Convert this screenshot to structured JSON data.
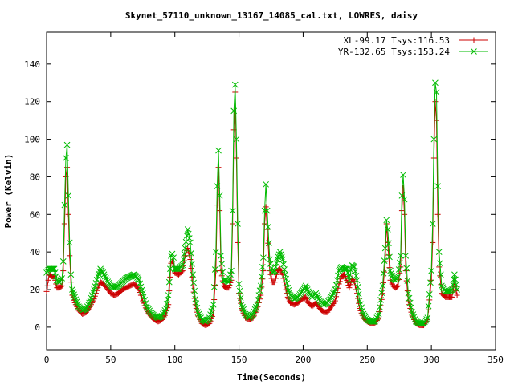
{
  "chart_data": {
    "type": "line",
    "title": "Skynet_57110_unknown_13167_14085_cal.txt, LOWRES, daisy",
    "xlabel": "Time(Seconds)",
    "ylabel": "Power (Kelvin)",
    "xlim": [
      0,
      350
    ],
    "ylim": [
      -12,
      157
    ],
    "xticks": [
      0,
      50,
      100,
      150,
      200,
      250,
      300,
      350
    ],
    "yticks": [
      0,
      20,
      40,
      60,
      80,
      100,
      120,
      140
    ],
    "legend_position": "top-right",
    "series": [
      {
        "name": "XL-99.17 Tsys:116.53",
        "color": "#cc0000",
        "marker": "plus",
        "points": [
          [
            0,
            19
          ],
          [
            2,
            28
          ],
          [
            4,
            27
          ],
          [
            6,
            27
          ],
          [
            8,
            21
          ],
          [
            10,
            21
          ],
          [
            12,
            22
          ],
          [
            13,
            30
          ],
          [
            14,
            55
          ],
          [
            15,
            80
          ],
          [
            16,
            85
          ],
          [
            17,
            60
          ],
          [
            18,
            38
          ],
          [
            19,
            24
          ],
          [
            20,
            17
          ],
          [
            22,
            13
          ],
          [
            25,
            9
          ],
          [
            28,
            7
          ],
          [
            31,
            8
          ],
          [
            34,
            11
          ],
          [
            37,
            15
          ],
          [
            40,
            21
          ],
          [
            42,
            24
          ],
          [
            44,
            23
          ],
          [
            47,
            21
          ],
          [
            50,
            18
          ],
          [
            53,
            17
          ],
          [
            56,
            18
          ],
          [
            59,
            20
          ],
          [
            62,
            21
          ],
          [
            65,
            22
          ],
          [
            68,
            23
          ],
          [
            70,
            22
          ],
          [
            72,
            20
          ],
          [
            75,
            14
          ],
          [
            78,
            9
          ],
          [
            81,
            6
          ],
          [
            84,
            4
          ],
          [
            87,
            3
          ],
          [
            90,
            4
          ],
          [
            93,
            7
          ],
          [
            95,
            12
          ],
          [
            97,
            34
          ],
          [
            98,
            35
          ],
          [
            99,
            33
          ],
          [
            100,
            29
          ],
          [
            103,
            28
          ],
          [
            106,
            30
          ],
          [
            108,
            38
          ],
          [
            110,
            42
          ],
          [
            112,
            36
          ],
          [
            114,
            22
          ],
          [
            116,
            12
          ],
          [
            118,
            6
          ],
          [
            121,
            2
          ],
          [
            124,
            1
          ],
          [
            127,
            2
          ],
          [
            130,
            7
          ],
          [
            132,
            30
          ],
          [
            133,
            65
          ],
          [
            134,
            85
          ],
          [
            135,
            62
          ],
          [
            136,
            30
          ],
          [
            138,
            22
          ],
          [
            140,
            21
          ],
          [
            142,
            21
          ],
          [
            144,
            25
          ],
          [
            145,
            55
          ],
          [
            146,
            105
          ],
          [
            147,
            125
          ],
          [
            148,
            90
          ],
          [
            149,
            45
          ],
          [
            150,
            18
          ],
          [
            152,
            10
          ],
          [
            155,
            5
          ],
          [
            158,
            4
          ],
          [
            161,
            5
          ],
          [
            164,
            9
          ],
          [
            167,
            17
          ],
          [
            169,
            30
          ],
          [
            170,
            55
          ],
          [
            171,
            64
          ],
          [
            172,
            52
          ],
          [
            174,
            30
          ],
          [
            176,
            24
          ],
          [
            178,
            24
          ],
          [
            180,
            30
          ],
          [
            182,
            31
          ],
          [
            184,
            28
          ],
          [
            186,
            22
          ],
          [
            188,
            16
          ],
          [
            190,
            13
          ],
          [
            193,
            12
          ],
          [
            196,
            13
          ],
          [
            199,
            15
          ],
          [
            202,
            16
          ],
          [
            204,
            13
          ],
          [
            207,
            11
          ],
          [
            210,
            13
          ],
          [
            213,
            10
          ],
          [
            216,
            8
          ],
          [
            219,
            8
          ],
          [
            222,
            11
          ],
          [
            225,
            14
          ],
          [
            228,
            23
          ],
          [
            230,
            27
          ],
          [
            232,
            28
          ],
          [
            234,
            25
          ],
          [
            236,
            21
          ],
          [
            238,
            26
          ],
          [
            240,
            24
          ],
          [
            242,
            18
          ],
          [
            244,
            10
          ],
          [
            247,
            5
          ],
          [
            250,
            3
          ],
          [
            253,
            2
          ],
          [
            256,
            2
          ],
          [
            259,
            5
          ],
          [
            262,
            18
          ],
          [
            264,
            35
          ],
          [
            265,
            55
          ],
          [
            266,
            45
          ],
          [
            268,
            25
          ],
          [
            270,
            22
          ],
          [
            272,
            21
          ],
          [
            274,
            22
          ],
          [
            276,
            32
          ],
          [
            277,
            62
          ],
          [
            278,
            74
          ],
          [
            279,
            60
          ],
          [
            280,
            30
          ],
          [
            282,
            14
          ],
          [
            285,
            6
          ],
          [
            288,
            2
          ],
          [
            291,
            1
          ],
          [
            294,
            1
          ],
          [
            297,
            4
          ],
          [
            300,
            25
          ],
          [
            301,
            45
          ],
          [
            302,
            90
          ],
          [
            303,
            120
          ],
          [
            304,
            110
          ],
          [
            305,
            60
          ],
          [
            306,
            32
          ],
          [
            308,
            18
          ],
          [
            311,
            16
          ],
          [
            314,
            16
          ],
          [
            316,
            16
          ],
          [
            318,
            24
          ],
          [
            320,
            17
          ]
        ]
      },
      {
        "name": "YR-132.65 Tsys:153.24",
        "color": "#00bb00",
        "marker": "cross",
        "points": [
          [
            0,
            29
          ],
          [
            2,
            31
          ],
          [
            4,
            31
          ],
          [
            6,
            31
          ],
          [
            8,
            25
          ],
          [
            10,
            24
          ],
          [
            12,
            26
          ],
          [
            13,
            35
          ],
          [
            14,
            65
          ],
          [
            15,
            90
          ],
          [
            16,
            97
          ],
          [
            17,
            70
          ],
          [
            18,
            45
          ],
          [
            19,
            28
          ],
          [
            20,
            20
          ],
          [
            22,
            16
          ],
          [
            25,
            11
          ],
          [
            28,
            9
          ],
          [
            31,
            10
          ],
          [
            34,
            14
          ],
          [
            37,
            20
          ],
          [
            40,
            27
          ],
          [
            42,
            31
          ],
          [
            44,
            29
          ],
          [
            47,
            25
          ],
          [
            50,
            22
          ],
          [
            53,
            21
          ],
          [
            56,
            22
          ],
          [
            59,
            24
          ],
          [
            62,
            26
          ],
          [
            65,
            27
          ],
          [
            68,
            28
          ],
          [
            70,
            27
          ],
          [
            72,
            25
          ],
          [
            75,
            18
          ],
          [
            78,
            11
          ],
          [
            81,
            8
          ],
          [
            84,
            6
          ],
          [
            87,
            5
          ],
          [
            90,
            6
          ],
          [
            93,
            10
          ],
          [
            95,
            17
          ],
          [
            97,
            38
          ],
          [
            98,
            39
          ],
          [
            99,
            37
          ],
          [
            100,
            31
          ],
          [
            103,
            31
          ],
          [
            106,
            33
          ],
          [
            108,
            42
          ],
          [
            110,
            52
          ],
          [
            112,
            45
          ],
          [
            114,
            28
          ],
          [
            116,
            15
          ],
          [
            118,
            8
          ],
          [
            121,
            4
          ],
          [
            124,
            3
          ],
          [
            127,
            5
          ],
          [
            130,
            12
          ],
          [
            132,
            40
          ],
          [
            133,
            75
          ],
          [
            134,
            94
          ],
          [
            135,
            70
          ],
          [
            136,
            38
          ],
          [
            138,
            25
          ],
          [
            140,
            25
          ],
          [
            142,
            24
          ],
          [
            144,
            30
          ],
          [
            145,
            62
          ],
          [
            146,
            115
          ],
          [
            147,
            129
          ],
          [
            148,
            100
          ],
          [
            149,
            55
          ],
          [
            150,
            23
          ],
          [
            152,
            12
          ],
          [
            155,
            7
          ],
          [
            158,
            5
          ],
          [
            161,
            7
          ],
          [
            164,
            12
          ],
          [
            167,
            22
          ],
          [
            169,
            37
          ],
          [
            170,
            62
          ],
          [
            171,
            76
          ],
          [
            172,
            62
          ],
          [
            174,
            36
          ],
          [
            176,
            29
          ],
          [
            178,
            30
          ],
          [
            180,
            36
          ],
          [
            182,
            40
          ],
          [
            184,
            36
          ],
          [
            186,
            28
          ],
          [
            188,
            21
          ],
          [
            190,
            17
          ],
          [
            193,
            15
          ],
          [
            196,
            16
          ],
          [
            199,
            19
          ],
          [
            202,
            22
          ],
          [
            204,
            19
          ],
          [
            207,
            16
          ],
          [
            210,
            18
          ],
          [
            213,
            14
          ],
          [
            216,
            12
          ],
          [
            219,
            13
          ],
          [
            222,
            16
          ],
          [
            225,
            20
          ],
          [
            228,
            30
          ],
          [
            230,
            32
          ],
          [
            232,
            31
          ],
          [
            234,
            31
          ],
          [
            236,
            25
          ],
          [
            238,
            33
          ],
          [
            240,
            32
          ],
          [
            242,
            25
          ],
          [
            244,
            14
          ],
          [
            247,
            7
          ],
          [
            250,
            4
          ],
          [
            253,
            3
          ],
          [
            256,
            3
          ],
          [
            259,
            7
          ],
          [
            262,
            22
          ],
          [
            264,
            42
          ],
          [
            265,
            57
          ],
          [
            266,
            52
          ],
          [
            268,
            30
          ],
          [
            270,
            26
          ],
          [
            272,
            25
          ],
          [
            274,
            27
          ],
          [
            276,
            38
          ],
          [
            277,
            70
          ],
          [
            278,
            81
          ],
          [
            279,
            68
          ],
          [
            280,
            38
          ],
          [
            282,
            18
          ],
          [
            285,
            8
          ],
          [
            288,
            3
          ],
          [
            291,
            2
          ],
          [
            294,
            2
          ],
          [
            297,
            5
          ],
          [
            300,
            30
          ],
          [
            301,
            55
          ],
          [
            302,
            100
          ],
          [
            303,
            130
          ],
          [
            304,
            125
          ],
          [
            305,
            75
          ],
          [
            306,
            40
          ],
          [
            308,
            22
          ],
          [
            311,
            19
          ],
          [
            314,
            19
          ],
          [
            316,
            20
          ],
          [
            318,
            28
          ],
          [
            320,
            20
          ]
        ]
      }
    ]
  }
}
